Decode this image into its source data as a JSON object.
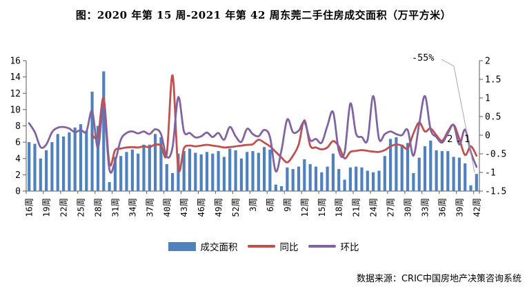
{
  "title": "图：2020 年第 15 周-2021 年第 42 周东莞二手住房成交面积（万平方米）",
  "source": "数据来源：CRIC中国房地产决策咨询系统",
  "annotations": {
    "yoy_end_label": "-55%",
    "last_bar_label": "2.1"
  },
  "legend": {
    "items": [
      {
        "label": "成交面积",
        "type": "bar",
        "color": "#4F81BD"
      },
      {
        "label": "同比",
        "type": "line",
        "color": "#C0504D"
      },
      {
        "label": "环比",
        "type": "line",
        "color": "#8064A2"
      }
    ]
  },
  "chart_data": {
    "type": "bar+line combo, dual axis",
    "x_tick_labels": [
      "16周",
      "19周",
      "22周",
      "25周",
      "28周",
      "31周",
      "34周",
      "37周",
      "40周",
      "43周",
      "46周",
      "49周",
      "52周",
      "3周",
      "6周",
      "9周",
      "12周",
      "15周",
      "18周",
      "21周",
      "24周",
      "27周",
      "30周",
      "33周",
      "36周",
      "39周",
      "42周"
    ],
    "tick_interval": 3,
    "axes": {
      "left": {
        "min": 0,
        "max": 2,
        "step": 2,
        "ticks": [
          0,
          2,
          4,
          6,
          8,
          10,
          12,
          14,
          16
        ]
      },
      "right": {
        "min": -1.5,
        "max": 2,
        "step": 0.5,
        "ticks": [
          -1.5,
          -1,
          -0.5,
          0,
          0.5,
          1,
          1.5,
          2
        ]
      }
    },
    "series": [
      {
        "name": "成交面积",
        "axis": "left",
        "type": "bar",
        "color": "#4F81BD",
        "values": [
          6.0,
          5.8,
          4.0,
          5.0,
          6.0,
          7.0,
          6.7,
          7.2,
          7.8,
          8.2,
          7.4,
          12.2,
          8.0,
          14.7,
          1.1,
          4.2,
          4.3,
          4.8,
          5.1,
          4.6,
          5.7,
          5.7,
          7.0,
          6.6,
          3.3,
          2.2,
          4.6,
          4.9,
          5.2,
          4.7,
          4.5,
          4.8,
          4.6,
          4.9,
          4.2,
          5.2,
          5.0,
          4.0,
          4.8,
          4.9,
          4.7,
          5.4,
          5.1,
          0.8,
          0.6,
          2.9,
          2.7,
          3.0,
          3.9,
          3.3,
          3.0,
          2.3,
          3.0,
          4.6,
          2.7,
          1.4,
          2.9,
          3.0,
          2.9,
          2.5,
          2.3,
          2.5,
          4.3,
          6.4,
          6.6,
          5.7,
          5.9,
          2.2,
          4.1,
          5.5,
          6.2,
          5.0,
          4.9,
          4.9,
          4.2,
          4.1,
          3.4,
          0.7,
          2.1
        ]
      },
      {
        "name": "同比",
        "axis": "right",
        "type": "line",
        "color": "#C0504D",
        "values": [
          null,
          null,
          null,
          null,
          null,
          null,
          null,
          null,
          null,
          null,
          null,
          0.0,
          -0.02,
          0.99,
          -0.76,
          -0.4,
          -0.36,
          -0.33,
          -0.32,
          -0.33,
          -0.3,
          -0.32,
          -0.25,
          -0.28,
          -0.49,
          1.61,
          -0.89,
          -0.35,
          -0.28,
          -0.3,
          -0.28,
          -0.26,
          -0.28,
          -0.3,
          -0.33,
          -0.32,
          -0.3,
          -0.28,
          -0.26,
          -0.24,
          -0.12,
          -0.2,
          -0.3,
          -0.45,
          -0.6,
          -0.73,
          -0.55,
          -0.25,
          0.4,
          -0.28,
          -0.33,
          -0.38,
          -0.33,
          -0.16,
          -0.3,
          -0.62,
          -0.45,
          -0.42,
          -0.4,
          -0.42,
          -0.44,
          -0.45,
          -0.4,
          -0.3,
          -0.25,
          -0.28,
          -0.35,
          0.05,
          0.34,
          0.1,
          0.18,
          0.0,
          -0.15,
          0.1,
          0.28,
          -0.1,
          -0.53,
          -0.3,
          -0.55
        ]
      },
      {
        "name": "环比",
        "axis": "right",
        "type": "line",
        "color": "#8064A2",
        "values": [
          0.32,
          0.08,
          -0.32,
          -0.25,
          0.08,
          0.2,
          0.22,
          0.18,
          0.08,
          0.14,
          0.1,
          0.65,
          -0.34,
          0.78,
          -0.92,
          -0.7,
          -0.12,
          0.06,
          0.1,
          0.05,
          0.1,
          0.03,
          0.16,
          0.03,
          -0.58,
          -0.33,
          1.02,
          0.1,
          0.06,
          -0.06,
          -0.03,
          0.07,
          -0.05,
          0.06,
          -0.12,
          0.22,
          -0.03,
          -0.18,
          0.17,
          0.03,
          -0.03,
          0.14,
          -0.05,
          -0.97,
          -0.4,
          0.42,
          0.08,
          0.12,
          0.35,
          -0.13,
          -0.1,
          -0.2,
          0.25,
          0.62,
          -0.42,
          -0.46,
          0.85,
          0.04,
          -0.05,
          -0.13,
          1.05,
          -0.1,
          0.03,
          0.1,
          0.03,
          0.0,
          0.14,
          -0.55,
          0.3,
          1.05,
          0.15,
          -0.05,
          -0.2,
          0.05,
          0.27,
          -0.25,
          0.15,
          -0.45,
          -0.85
        ]
      }
    ],
    "left_axis_range": [
      0,
      16
    ],
    "right_axis_range": [
      -1.5,
      2
    ],
    "grid": "off",
    "legend_position": "bottom"
  }
}
